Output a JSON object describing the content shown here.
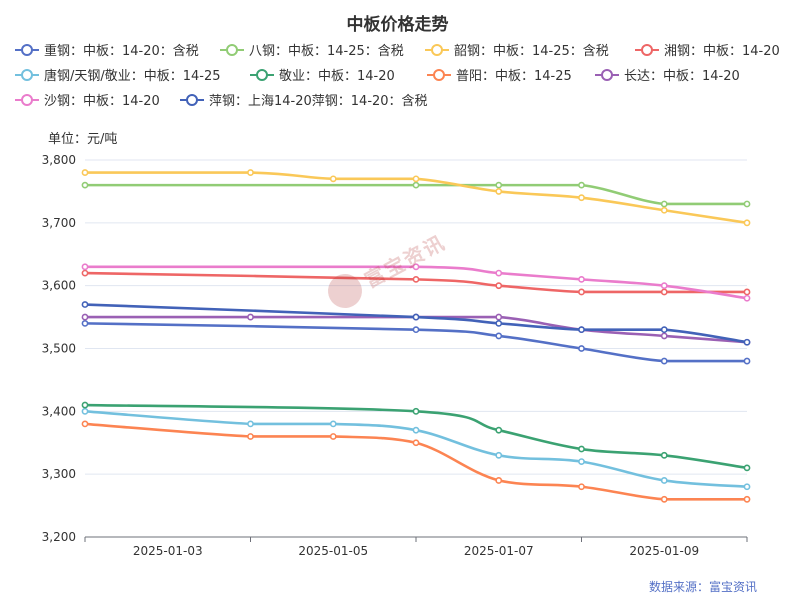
{
  "chart_data": {
    "type": "line",
    "title": "中板价格走势",
    "unit_label": "单位：元/吨",
    "source": "数据来源：富宝资讯",
    "watermark": "富宝资讯",
    "x_dates": [
      "2025-01-02",
      "2025-01-04",
      "2025-01-06",
      "2025-01-07",
      "2025-01-08",
      "2025-01-09",
      "2025-01-10"
    ],
    "x_ticks": [
      "2025-01-03",
      "2025-01-05",
      "2025-01-07",
      "2025-01-09"
    ],
    "xlim": [
      "2025-01-02",
      "2025-01-10"
    ],
    "y_ticks": [
      "3,200",
      "3,300",
      "3,400",
      "3,500",
      "3,600",
      "3,700",
      "3,800"
    ],
    "ylim": [
      3200,
      3800
    ],
    "grid": "horizontal",
    "legend_position": "top",
    "series": [
      {
        "name": "重钢：中板：14-20：含税",
        "color": "#5470c6",
        "points": [
          [
            "2025-01-02",
            3540
          ],
          [
            "2025-01-06",
            3530
          ],
          [
            "2025-01-07",
            3520
          ],
          [
            "2025-01-08",
            3500
          ],
          [
            "2025-01-09",
            3480
          ],
          [
            "2025-01-10",
            3480
          ]
        ]
      },
      {
        "name": "八钢：中板：14-25：含税",
        "color": "#91cc75",
        "points": [
          [
            "2025-01-02",
            3760
          ],
          [
            "2025-01-06",
            3760
          ],
          [
            "2025-01-07",
            3760
          ],
          [
            "2025-01-08",
            3760
          ],
          [
            "2025-01-09",
            3730
          ],
          [
            "2025-01-10",
            3730
          ]
        ]
      },
      {
        "name": "韶钢：中板：14-25：含税",
        "color": "#fac858",
        "points": [
          [
            "2025-01-02",
            3780
          ],
          [
            "2025-01-04",
            3780
          ],
          [
            "2025-01-05",
            3770
          ],
          [
            "2025-01-06",
            3770
          ],
          [
            "2025-01-07",
            3750
          ],
          [
            "2025-01-08",
            3740
          ],
          [
            "2025-01-09",
            3720
          ],
          [
            "2025-01-10",
            3700
          ]
        ]
      },
      {
        "name": "湘钢：中板：14-20",
        "color": "#ee6666",
        "points": [
          [
            "2025-01-02",
            3620
          ],
          [
            "2025-01-06",
            3610
          ],
          [
            "2025-01-07",
            3600
          ],
          [
            "2025-01-08",
            3590
          ],
          [
            "2025-01-09",
            3590
          ],
          [
            "2025-01-10",
            3590
          ]
        ]
      },
      {
        "name": "唐钢/天钢/敬业：中板：14-25",
        "color": "#73c0de",
        "points": [
          [
            "2025-01-02",
            3400
          ],
          [
            "2025-01-04",
            3380
          ],
          [
            "2025-01-05",
            3380
          ],
          [
            "2025-01-06",
            3370
          ],
          [
            "2025-01-07",
            3330
          ],
          [
            "2025-01-08",
            3320
          ],
          [
            "2025-01-09",
            3290
          ],
          [
            "2025-01-10",
            3280
          ]
        ]
      },
      {
        "name": "敬业：中板：14-20",
        "color": "#3ba272",
        "points": [
          [
            "2025-01-02",
            3410
          ],
          [
            "2025-01-06",
            3400
          ],
          [
            "2025-01-07",
            3370
          ],
          [
            "2025-01-08",
            3340
          ],
          [
            "2025-01-09",
            3330
          ],
          [
            "2025-01-10",
            3310
          ]
        ]
      },
      {
        "name": "普阳：中板：14-25",
        "color": "#fc8452",
        "points": [
          [
            "2025-01-02",
            3380
          ],
          [
            "2025-01-04",
            3360
          ],
          [
            "2025-01-05",
            3360
          ],
          [
            "2025-01-06",
            3350
          ],
          [
            "2025-01-07",
            3290
          ],
          [
            "2025-01-08",
            3280
          ],
          [
            "2025-01-09",
            3260
          ],
          [
            "2025-01-10",
            3260
          ]
        ]
      },
      {
        "name": "长达：中板：14-20",
        "color": "#9a60b4",
        "points": [
          [
            "2025-01-02",
            3550
          ],
          [
            "2025-01-04",
            3550
          ],
          [
            "2025-01-06",
            3550
          ],
          [
            "2025-01-07",
            3550
          ],
          [
            "2025-01-08",
            3530
          ],
          [
            "2025-01-09",
            3520
          ],
          [
            "2025-01-10",
            3510
          ]
        ]
      },
      {
        "name": "沙钢：中板：14-20",
        "color": "#ea7ccc",
        "points": [
          [
            "2025-01-02",
            3630
          ],
          [
            "2025-01-06",
            3630
          ],
          [
            "2025-01-07",
            3620
          ],
          [
            "2025-01-08",
            3610
          ],
          [
            "2025-01-09",
            3600
          ],
          [
            "2025-01-10",
            3580
          ]
        ]
      },
      {
        "name": "萍钢：上海14-20萍钢：14-20：含税",
        "color": "#4262b8",
        "points": [
          [
            "2025-01-02",
            3570
          ],
          [
            "2025-01-06",
            3550
          ],
          [
            "2025-01-07",
            3540
          ],
          [
            "2025-01-08",
            3530
          ],
          [
            "2025-01-09",
            3530
          ],
          [
            "2025-01-10",
            3510
          ]
        ]
      }
    ]
  }
}
